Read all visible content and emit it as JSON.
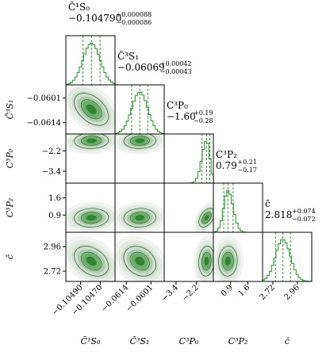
{
  "chart_data": {
    "type": "corner",
    "parameters": [
      {
        "key": "C1S0",
        "label": "C̃¹S₀",
        "tex": "\\tilde{C}_{^1S_0}",
        "median": -0.10479,
        "err_plus": 8.8e-05,
        "err_minus": 8.6e-05,
        "title_value": "−0.104790",
        "title_plus": "+0.000088",
        "title_minus": "−0.000086",
        "range": [
          -0.10505,
          -0.10455
        ],
        "ticks": [
          -0.1049,
          -0.1047
        ],
        "tick_labels": [
          "−0.10490",
          "−0.10470"
        ],
        "sigma": 8.7e-05
      },
      {
        "key": "C3S1",
        "label": "C̃³S₁",
        "tex": "\\tilde{C}_{^3S_1}",
        "median": -0.06069,
        "err_plus": 0.00042,
        "err_minus": 0.00043,
        "title_value": "−0.06069",
        "title_plus": "+0.00042",
        "title_minus": "−0.00043",
        "range": [
          -0.062,
          -0.0594
        ],
        "ticks": [
          -0.0614,
          -0.0601
        ],
        "tick_labels": [
          "−0.0614",
          "−0.0601"
        ],
        "sigma": 0.000425
      },
      {
        "key": "C3P0",
        "label": "C³P₀",
        "tex": "C_{^3P_0}",
        "median": -1.6,
        "err_plus": 0.19,
        "err_minus": 0.28,
        "title_value": "−1.60",
        "title_plus": "+0.19",
        "title_minus": "−0.28",
        "range": [
          -4.1,
          -1.2
        ],
        "ticks": [
          -3.4,
          -2.2
        ],
        "tick_labels": [
          "−3.4",
          "−2.2"
        ],
        "sigma": 0.23
      },
      {
        "key": "C3P2",
        "label": "C³P₂",
        "tex": "C_{^3P_2}",
        "median": 0.79,
        "err_plus": 0.21,
        "err_minus": 0.17,
        "title_value": "0.79",
        "title_plus": "+0.21",
        "title_minus": "−0.17",
        "range": [
          0.2,
          2.2
        ],
        "ticks": [
          0.9,
          1.6
        ],
        "tick_labels": [
          "0.9",
          "1.6"
        ],
        "sigma": 0.19
      },
      {
        "key": "cbar",
        "label": "c̄",
        "tex": "\\bar{c}",
        "median": 2.818,
        "err_plus": 0.074,
        "err_minus": 0.072,
        "title_value": "2.818",
        "title_plus": "+0.074",
        "title_minus": "−0.072",
        "range": [
          2.62,
          3.1
        ],
        "ticks": [
          2.72,
          2.96
        ],
        "tick_labels": [
          "2.72",
          "2.96"
        ],
        "sigma": 0.073
      }
    ],
    "correlations": {
      "1,0": -0.45,
      "2,0": 0.05,
      "2,1": 0.05,
      "3,0": 0.05,
      "3,1": 0.05,
      "3,2": 0.45,
      "4,0": -0.35,
      "4,1": -0.25,
      "4,2": 0.1,
      "4,3": 0.05
    },
    "quantile_lines": "16th, 50th and 84th percentiles (dashed)",
    "grid": false,
    "legend": "none"
  },
  "colors": {
    "line": "#2ca02c",
    "fill_dark": "#1e7a1e",
    "fill_light": "#e8ece8",
    "axis": "#000000"
  }
}
